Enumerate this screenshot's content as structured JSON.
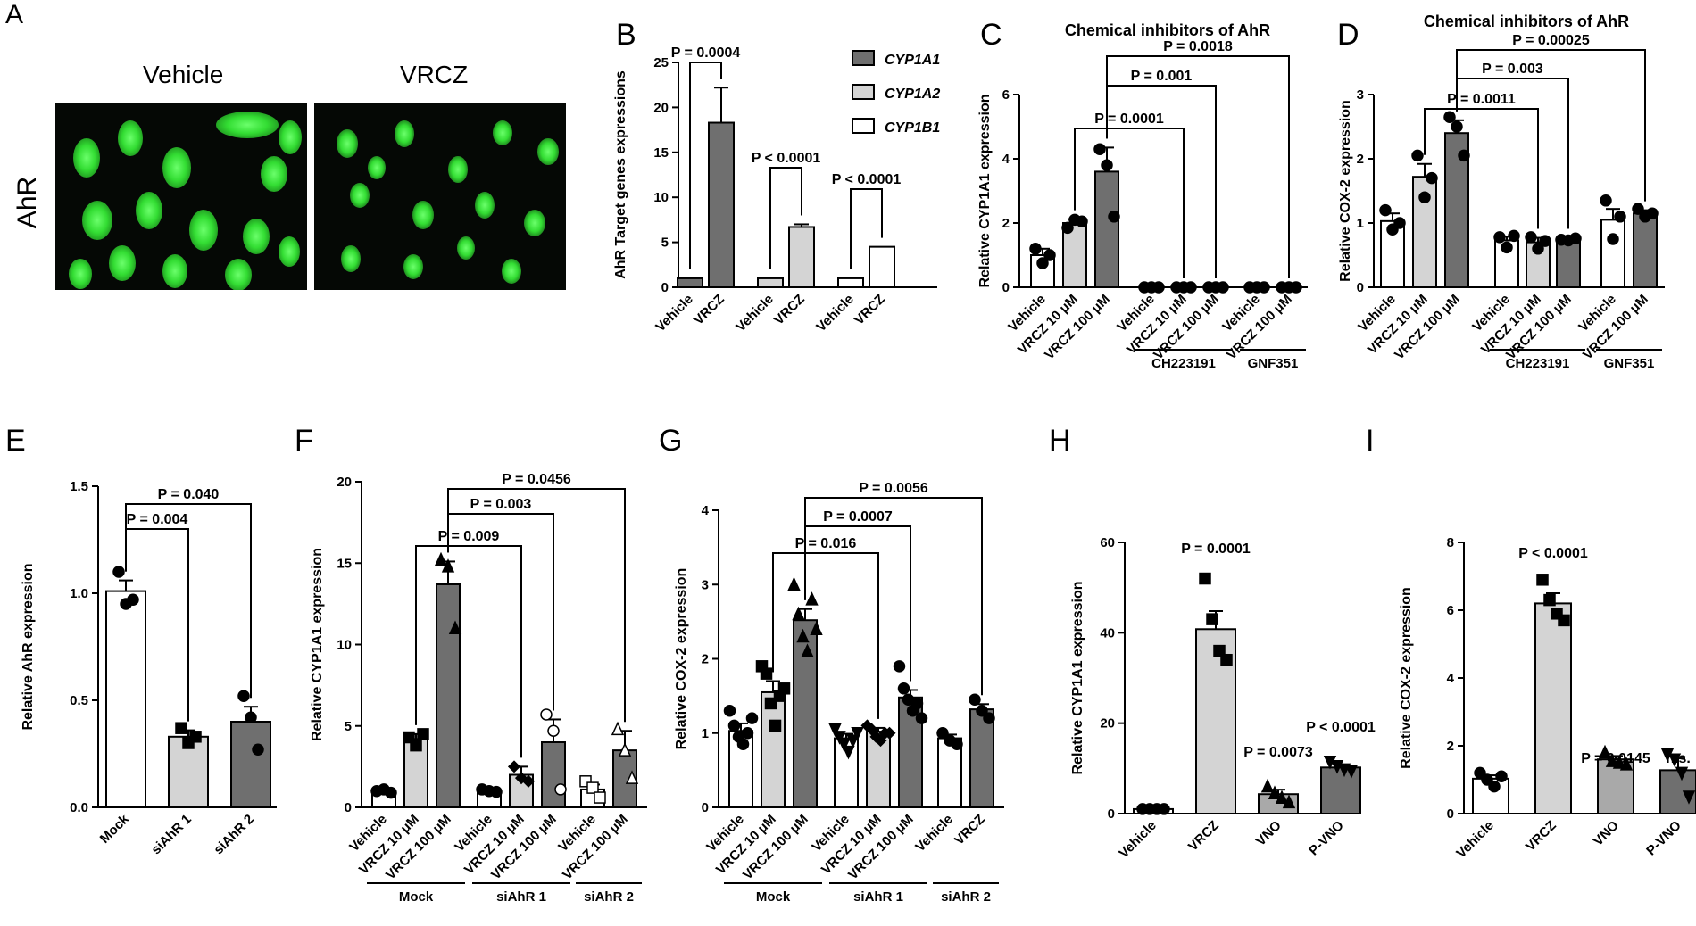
{
  "colors": {
    "white": "#ffffff",
    "light": "#d4d4d4",
    "mid": "#a9a9a9",
    "dark": "#6f6f6f",
    "green": "#33dd33",
    "black": "#000000"
  },
  "panel_a": {
    "letter": "A",
    "row_label": "AhR",
    "images": [
      "Vehicle",
      "VRCZ"
    ]
  },
  "chart_data": [
    {
      "id": "B",
      "type": "bar",
      "letter": "B",
      "ylabel": "AhR Target genes expressions",
      "ylim": [
        0,
        25
      ],
      "yticks": [
        0,
        5,
        10,
        15,
        20,
        25
      ],
      "legend": [
        {
          "name": "CYP1A1",
          "color": "#6f6f6f"
        },
        {
          "name": "CYP1A2",
          "color": "#d4d4d4"
        },
        {
          "name": "CYP1B1",
          "color": "#ffffff"
        }
      ],
      "legend_position": "top-right",
      "bars": [
        {
          "label": "Vehicle",
          "value": 1,
          "err": 0,
          "color": "#6f6f6f",
          "points": []
        },
        {
          "label": "VRCZ",
          "value": 18.3,
          "err": 3.9,
          "color": "#6f6f6f",
          "points": []
        },
        {
          "label": "Vehicle",
          "value": 1,
          "err": 0,
          "color": "#d4d4d4",
          "points": []
        },
        {
          "label": "VRCZ",
          "value": 6.7,
          "err": 0.3,
          "color": "#d4d4d4",
          "points": []
        },
        {
          "label": "Vehicle",
          "value": 1,
          "err": 0,
          "color": "#ffffff",
          "points": []
        },
        {
          "label": "VRCZ",
          "value": 4.5,
          "err": 0,
          "color": "#ffffff",
          "points": []
        }
      ],
      "annotations": [
        {
          "text": "P = 0.0004",
          "from": 0,
          "to": 1
        },
        {
          "text": "P < 0.0001",
          "from": 2,
          "to": 3
        },
        {
          "text": "P < 0.0001",
          "from": 4,
          "to": 5
        }
      ]
    },
    {
      "id": "C",
      "type": "bar",
      "letter": "C",
      "title": "Chemical inhibitors of AhR",
      "ylabel": "Relative CYP1A1 expression",
      "ylim": [
        0,
        6
      ],
      "yticks": [
        0,
        2,
        4,
        6
      ],
      "bars": [
        {
          "label": "Vehicle",
          "value": 1,
          "err": 0.2,
          "color": "#ffffff",
          "points": [
            1.2,
            0.75,
            1.0
          ]
        },
        {
          "label": "VRCZ 10 μM",
          "value": 2,
          "err": 0.12,
          "color": "#d4d4d4",
          "points": [
            1.85,
            2.1,
            2.05
          ]
        },
        {
          "label": "VRCZ 100 μM",
          "value": 3.6,
          "err": 0.75,
          "color": "#6f6f6f",
          "points": [
            4.3,
            3.8,
            2.2
          ]
        },
        {
          "label": "Vehicle",
          "value": 0,
          "err": 0,
          "color": "#ffffff",
          "points": [
            0,
            0,
            0
          ]
        },
        {
          "label": "VRCZ 10 μM",
          "value": 0,
          "err": 0,
          "color": "#d4d4d4",
          "points": [
            0,
            0,
            0
          ]
        },
        {
          "label": "VRCZ 100 μM",
          "value": 0,
          "err": 0,
          "color": "#6f6f6f",
          "points": [
            0,
            0,
            0
          ]
        },
        {
          "label": "Vehicle",
          "value": 0,
          "err": 0,
          "color": "#ffffff",
          "points": [
            0,
            0,
            0
          ]
        },
        {
          "label": "VRCZ 100 μM",
          "value": 0,
          "err": 0,
          "color": "#6f6f6f",
          "points": [
            0,
            0,
            0
          ]
        }
      ],
      "groups": [
        {
          "label": "CH223191",
          "from": 3,
          "to": 5
        },
        {
          "label": "GNF351",
          "from": 6,
          "to": 7
        }
      ],
      "annotations": [
        {
          "text": "P = 0.0001",
          "from": 1,
          "to": 4
        },
        {
          "text": "P = 0.001",
          "from": 2,
          "to": 5
        },
        {
          "text": "P = 0.0018",
          "from": 2,
          "to": 7
        }
      ]
    },
    {
      "id": "D",
      "type": "bar",
      "letter": "D",
      "title": "Chemical inhibitors of AhR",
      "ylabel": "Relative COX-2 expression",
      "ylim": [
        0,
        3
      ],
      "yticks": [
        0,
        1,
        2,
        3
      ],
      "bars": [
        {
          "label": "Vehicle",
          "value": 1.03,
          "err": 0.12,
          "color": "#ffffff",
          "points": [
            1.2,
            0.9,
            1.0
          ]
        },
        {
          "label": "VRCZ 10 μM",
          "value": 1.72,
          "err": 0.2,
          "color": "#d4d4d4",
          "points": [
            2.05,
            1.4,
            1.7
          ]
        },
        {
          "label": "VRCZ 100 μM",
          "value": 2.4,
          "err": 0.2,
          "color": "#6f6f6f",
          "points": [
            2.65,
            2.5,
            2.05
          ]
        },
        {
          "label": "Vehicle",
          "value": 0.73,
          "err": 0.06,
          "color": "#ffffff",
          "points": [
            0.78,
            0.62,
            0.8
          ]
        },
        {
          "label": "VRCZ 10 μM",
          "value": 0.7,
          "err": 0.07,
          "color": "#d4d4d4",
          "points": [
            0.78,
            0.6,
            0.72
          ]
        },
        {
          "label": "VRCZ 100 μM",
          "value": 0.75,
          "err": 0.02,
          "color": "#6f6f6f",
          "points": [
            0.74,
            0.73,
            0.76
          ]
        },
        {
          "label": "Vehicle",
          "value": 1.05,
          "err": 0.17,
          "color": "#ffffff",
          "points": [
            1.35,
            0.75,
            1.1
          ]
        },
        {
          "label": "VRCZ 100 μM",
          "value": 1.15,
          "err": 0.05,
          "color": "#6f6f6f",
          "points": [
            1.22,
            1.1,
            1.15
          ]
        }
      ],
      "groups": [
        {
          "label": "CH223191",
          "from": 3,
          "to": 5
        },
        {
          "label": "GNF351",
          "from": 6,
          "to": 7
        }
      ],
      "annotations": [
        {
          "text": "P = 0.0011",
          "from": 1,
          "to": 4
        },
        {
          "text": "P = 0.003",
          "from": 2,
          "to": 5
        },
        {
          "text": "P = 0.00025",
          "from": 2,
          "to": 7
        }
      ]
    },
    {
      "id": "E",
      "type": "bar",
      "letter": "E",
      "ylabel": "Relative AhR expression",
      "ylim": [
        0,
        1.5
      ],
      "yticks": [
        "0.0",
        "0.5",
        "1.0",
        "1.5"
      ],
      "bars": [
        {
          "label": "Mock",
          "value": 1.01,
          "err": 0.05,
          "color": "#ffffff",
          "points": [
            1.1,
            0.95,
            0.97
          ],
          "marker": "circle"
        },
        {
          "label": "siAhR 1",
          "value": 0.33,
          "err": 0.03,
          "color": "#d4d4d4",
          "points": [
            0.37,
            0.3,
            0.33
          ],
          "marker": "square"
        },
        {
          "label": "siAhR 2",
          "value": 0.4,
          "err": 0.07,
          "color": "#6f6f6f",
          "points": [
            0.52,
            0.42,
            0.27
          ],
          "marker": "circle"
        }
      ],
      "annotations": [
        {
          "text": "P = 0.004",
          "from": 0,
          "to": 1
        },
        {
          "text": "P = 0.040",
          "from": 0,
          "to": 2
        }
      ]
    },
    {
      "id": "F",
      "type": "bar",
      "letter": "F",
      "ylabel": "Relative CYP1A1 expression",
      "ylim": [
        0,
        20
      ],
      "yticks": [
        0,
        5,
        10,
        15,
        20
      ],
      "bars": [
        {
          "label": "Vehicle",
          "value": 1,
          "err": 0.1,
          "color": "#ffffff",
          "points": [
            1,
            1.1,
            0.9
          ],
          "marker": "circle"
        },
        {
          "label": "VRCZ 10 μM",
          "value": 4.2,
          "err": 0.3,
          "color": "#d4d4d4",
          "points": [
            4.3,
            3.8,
            4.5
          ],
          "marker": "square"
        },
        {
          "label": "VRCZ 100 μM",
          "value": 13.7,
          "err": 1.4,
          "color": "#6f6f6f",
          "points": [
            15.2,
            14.8,
            11
          ],
          "marker": "triangle"
        },
        {
          "label": "Vehicle",
          "value": 1,
          "err": 0.1,
          "color": "#ffffff",
          "points": [
            1.1,
            1.0,
            0.95
          ],
          "marker": "circle"
        },
        {
          "label": "VRCZ 10 μM",
          "value": 2,
          "err": 0.5,
          "color": "#d4d4d4",
          "points": [
            2.5,
            1.8,
            1.6
          ],
          "marker": "diamond"
        },
        {
          "label": "VRCZ 100 μM",
          "value": 4,
          "err": 1.4,
          "color": "#6f6f6f",
          "points": [
            5.7,
            4.7,
            1.1
          ],
          "marker": "circle-open"
        },
        {
          "label": "Vehicle",
          "value": 1.1,
          "err": 0.3,
          "color": "#ffffff",
          "points": [
            1.6,
            1.2,
            0.6
          ],
          "marker": "square-open"
        },
        {
          "label": "VRCZ 100 μM",
          "value": 3.5,
          "err": 1.2,
          "color": "#6f6f6f",
          "points": [
            4.8,
            3.5,
            1.8
          ],
          "marker": "triangle-open"
        }
      ],
      "groups": [
        {
          "label": "Mock",
          "from": 0,
          "to": 2
        },
        {
          "label": "siAhR 1",
          "from": 3,
          "to": 5
        },
        {
          "label": "siAhR 2",
          "from": 6,
          "to": 7
        }
      ],
      "annotations": [
        {
          "text": "P = 0.009",
          "from": 1,
          "to": 4
        },
        {
          "text": "P = 0.003",
          "from": 2,
          "to": 5
        },
        {
          "text": "P = 0.0456",
          "from": 2,
          "to": 7
        }
      ]
    },
    {
      "id": "G",
      "type": "bar",
      "letter": "G",
      "ylabel": "Relative COX-2 expression",
      "ylim": [
        0,
        4
      ],
      "yticks": [
        0,
        1,
        2,
        3,
        4
      ],
      "bars": [
        {
          "label": "Vehicle",
          "value": 1.03,
          "err": 0.1,
          "color": "#ffffff",
          "points": [
            1.3,
            1.1,
            0.95,
            0.85,
            1.0,
            1.2
          ],
          "marker": "circle"
        },
        {
          "label": "VRCZ 10 μM",
          "value": 1.55,
          "err": 0.15,
          "color": "#d4d4d4",
          "points": [
            1.9,
            1.8,
            1.4,
            1.1,
            1.5,
            1.6
          ],
          "marker": "square"
        },
        {
          "label": "VRCZ 100 μM",
          "value": 2.52,
          "err": 0.15,
          "color": "#6f6f6f",
          "points": [
            3.0,
            2.6,
            2.3,
            2.1,
            2.8,
            2.4
          ],
          "marker": "triangle"
        },
        {
          "label": "Vehicle",
          "value": 0.93,
          "err": 0.06,
          "color": "#ffffff",
          "points": [
            1.05,
            0.95,
            0.85,
            0.75,
            0.9,
            1.0
          ],
          "marker": "triangle-down"
        },
        {
          "label": "VRCZ 10 μM",
          "value": 1.02,
          "err": 0.05,
          "color": "#d4d4d4",
          "points": [
            1.1,
            1.05,
            0.95,
            0.9,
            1.0,
            1.0
          ],
          "marker": "diamond"
        },
        {
          "label": "VRCZ 100 μM",
          "value": 1.48,
          "err": 0.1,
          "color": "#6f6f6f",
          "points": [
            1.9,
            1.6,
            1.45,
            1.3,
            1.4,
            1.2
          ],
          "marker": "circle"
        },
        {
          "label": "Vehicle",
          "value": 0.93,
          "err": 0.05,
          "color": "#ffffff",
          "points": [
            1.0,
            0.9,
            0.85
          ],
          "marker": "circle"
        },
        {
          "label": "VRCZ",
          "value": 1.32,
          "err": 0.07,
          "color": "#6f6f6f",
          "points": [
            1.45,
            1.3,
            1.2
          ],
          "marker": "circle"
        }
      ],
      "groups": [
        {
          "label": "Mock",
          "from": 0,
          "to": 2
        },
        {
          "label": "siAhR 1",
          "from": 3,
          "to": 5
        },
        {
          "label": "siAhR 2",
          "from": 6,
          "to": 7
        }
      ],
      "annotations": [
        {
          "text": "P = 0.016",
          "from": 1,
          "to": 4
        },
        {
          "text": "P = 0.0007",
          "from": 2,
          "to": 5
        },
        {
          "text": "P = 0.0056",
          "from": 2,
          "to": 7
        }
      ]
    },
    {
      "id": "H",
      "type": "bar",
      "letter": "H",
      "ylabel": "Relative CYP1A1 expression",
      "ylim": [
        0,
        60
      ],
      "yticks": [
        0,
        20,
        40,
        60
      ],
      "bars": [
        {
          "label": "Vehicle",
          "value": 1,
          "err": 0.1,
          "color": "#ffffff",
          "points": [
            1,
            1,
            1,
            1
          ],
          "marker": "circle"
        },
        {
          "label": "VRCZ",
          "value": 40.8,
          "err": 4,
          "color": "#d4d4d4",
          "points": [
            52,
            43,
            36,
            34
          ],
          "marker": "square"
        },
        {
          "label": "VNO",
          "value": 4.3,
          "err": 1,
          "color": "#a9a9a9",
          "points": [
            6,
            4.5,
            3.5,
            2.5
          ],
          "marker": "triangle"
        },
        {
          "label": "P-VNO",
          "value": 10.2,
          "err": 0.6,
          "color": "#6f6f6f",
          "points": [
            11.5,
            10.5,
            9.8,
            9.5
          ],
          "marker": "triangle-down"
        }
      ],
      "labels": [
        "P = 0.0001",
        "P = 0.0073",
        "P < 0.0001"
      ]
    },
    {
      "id": "I",
      "type": "bar",
      "letter": "I",
      "ylabel": "Relative COX-2 expression",
      "ylim": [
        0,
        8
      ],
      "yticks": [
        0,
        2,
        4,
        6,
        8
      ],
      "bars": [
        {
          "label": "Vehicle",
          "value": 1.03,
          "err": 0.1,
          "color": "#ffffff",
          "points": [
            1.2,
            1.0,
            0.8,
            1.1
          ],
          "marker": "circle"
        },
        {
          "label": "VRCZ",
          "value": 6.2,
          "err": 0.3,
          "color": "#d4d4d4",
          "points": [
            6.9,
            6.3,
            5.9,
            5.7
          ],
          "marker": "square"
        },
        {
          "label": "VNO",
          "value": 1.6,
          "err": 0.1,
          "color": "#a9a9a9",
          "points": [
            1.8,
            1.55,
            1.5,
            1.45
          ],
          "marker": "triangle"
        },
        {
          "label": "P-VNO",
          "value": 1.28,
          "err": 0.35,
          "color": "#6f6f6f",
          "points": [
            1.75,
            1.6,
            1.2,
            0.5
          ],
          "marker": "triangle-down"
        }
      ],
      "labels": [
        "",
        "P < 0.0001",
        "P = 0.0145",
        "n.s."
      ]
    }
  ]
}
